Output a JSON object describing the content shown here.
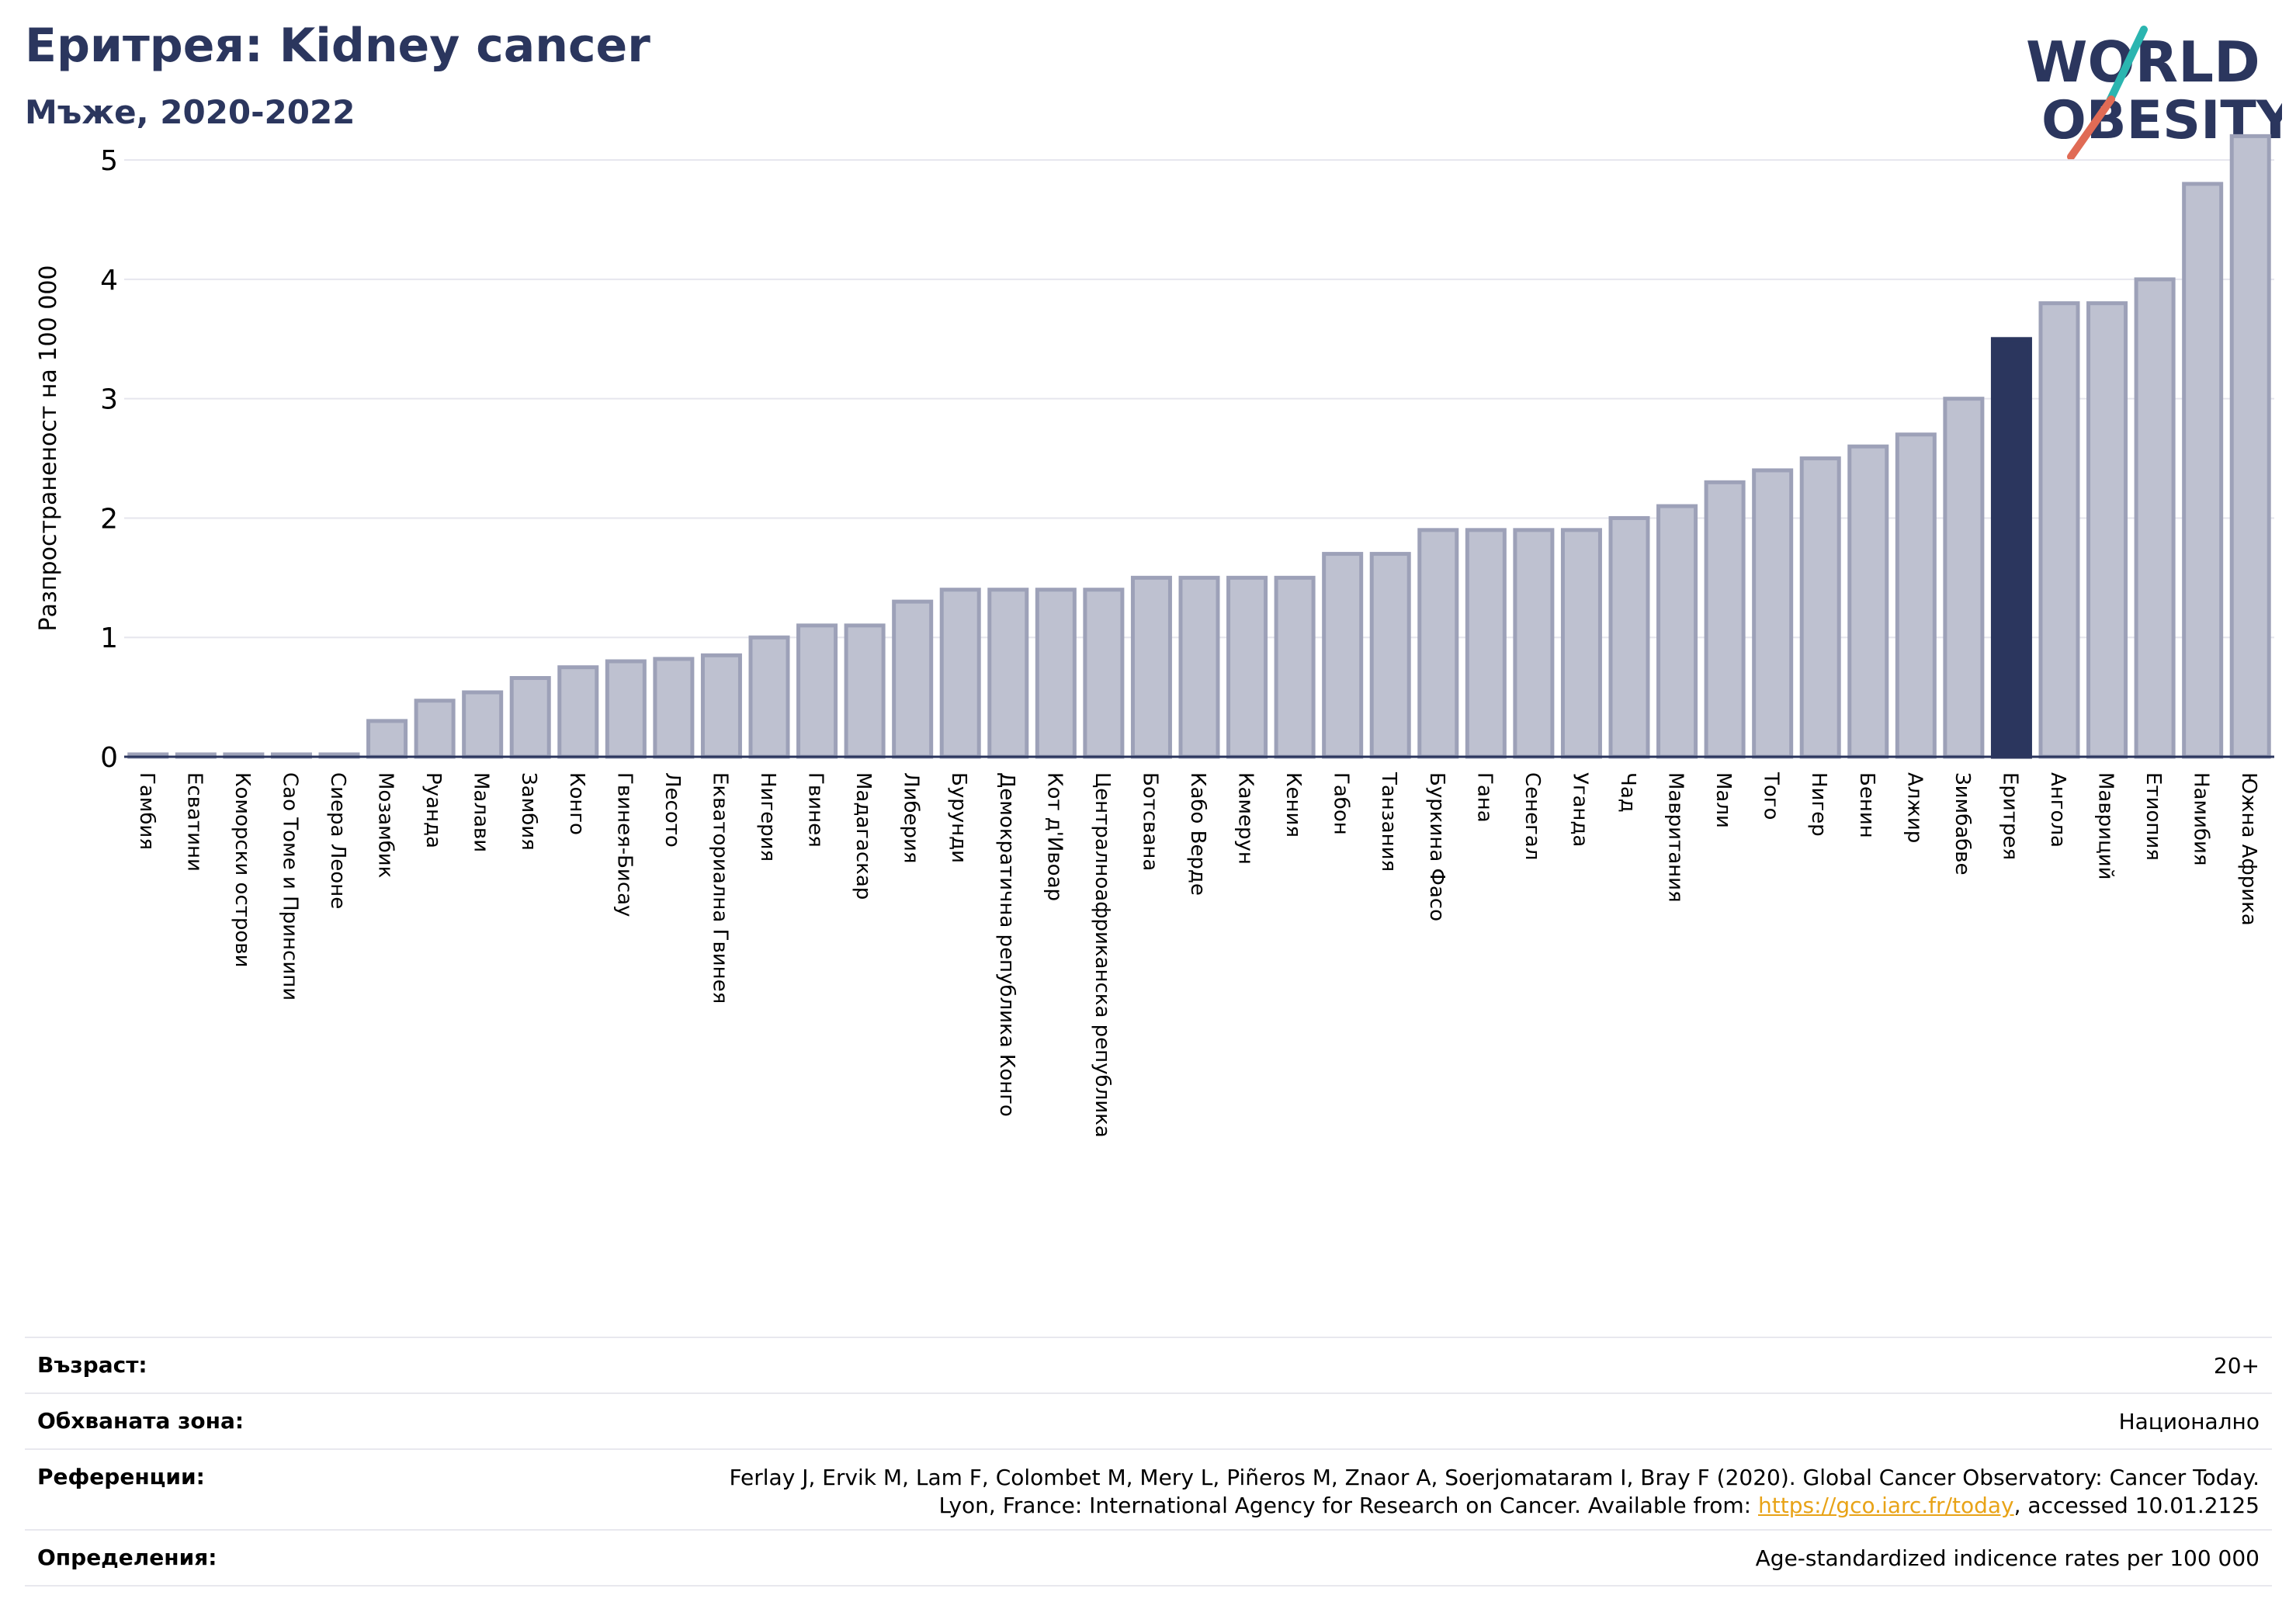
{
  "header": {
    "title": "Еритрея: Kidney cancer",
    "subtitle": "Мъже, 2020-2022"
  },
  "logo": {
    "line1": "WORLD",
    "line2": "OBESITY",
    "colors": {
      "text": "#2b365e",
      "slash_teal": "#2bb5b0",
      "slash_red": "#e06b55"
    }
  },
  "chart_data": {
    "type": "bar",
    "ylabel": "Разпространеност  на 100 000",
    "ylim": [
      0,
      5.3
    ],
    "yticks": [
      0,
      1,
      2,
      3,
      4,
      5
    ],
    "grid": true,
    "highlight": "Еритрея",
    "colors": {
      "bar": "#bec1d0",
      "bar_edge": "#9da1b8",
      "highlight": "#2b365e"
    },
    "categories": [
      "Гамбия",
      "Есватини",
      "Коморски острови",
      "Сао Томе и Принсипи",
      "Сиера Леоне",
      "Мозамбик",
      "Руанда",
      "Малави",
      "Замбия",
      "Конго",
      "Гвинея-Бисау",
      "Лесото",
      "Екваториална Гвинея",
      "Нигерия",
      "Гвинея",
      "Мадагаскар",
      "Либерия",
      "Бурунди",
      "Демократична република Конго",
      "Кот д'Ивоар",
      "Централноафриканска република",
      "Ботсвана",
      "Кабо Верде",
      "Камерун",
      "Кения",
      "Габон",
      "Танзания",
      "Буркина Фасо",
      "Гана",
      "Сенегал",
      "Уганда",
      "Чад",
      "Мавритания",
      "Мали",
      "Того",
      "Нигер",
      "Бенин",
      "Алжир",
      "Зимбабве",
      "Еритрея",
      "Ангола",
      "Мавриций",
      "Етиопия",
      "Намибия",
      "Южна Африка"
    ],
    "values": [
      0.02,
      0.02,
      0.02,
      0.02,
      0.02,
      0.3,
      0.47,
      0.54,
      0.66,
      0.75,
      0.8,
      0.82,
      0.85,
      1.0,
      1.1,
      1.1,
      1.3,
      1.4,
      1.4,
      1.4,
      1.4,
      1.5,
      1.5,
      1.5,
      1.5,
      1.7,
      1.7,
      1.9,
      1.9,
      1.9,
      1.9,
      2.0,
      2.1,
      2.3,
      2.4,
      2.5,
      2.6,
      2.7,
      3.0,
      3.5,
      3.8,
      3.8,
      4.0,
      4.8,
      5.2
    ]
  },
  "info": {
    "age": {
      "label": "Възраст:",
      "value": "20+"
    },
    "area": {
      "label": "Обхваната зона:",
      "value": "Национално"
    },
    "references": {
      "label": "Референции:",
      "line1": "Ferlay J, Ervik M, Lam F, Colombet M, Mery L, Piñeros M, Znaor A, Soerjomataram I, Bray F (2020). Global Cancer Observatory: Cancer Today.",
      "line2_prefix": "Lyon, France: International Agency for Research on Cancer. Available from: ",
      "link": "https://gco.iarc.fr/today",
      "line2_suffix": ", accessed 10.01.2125"
    },
    "definitions": {
      "label": "Определения:",
      "value": "Age-standardized indicence rates per 100 000"
    }
  }
}
